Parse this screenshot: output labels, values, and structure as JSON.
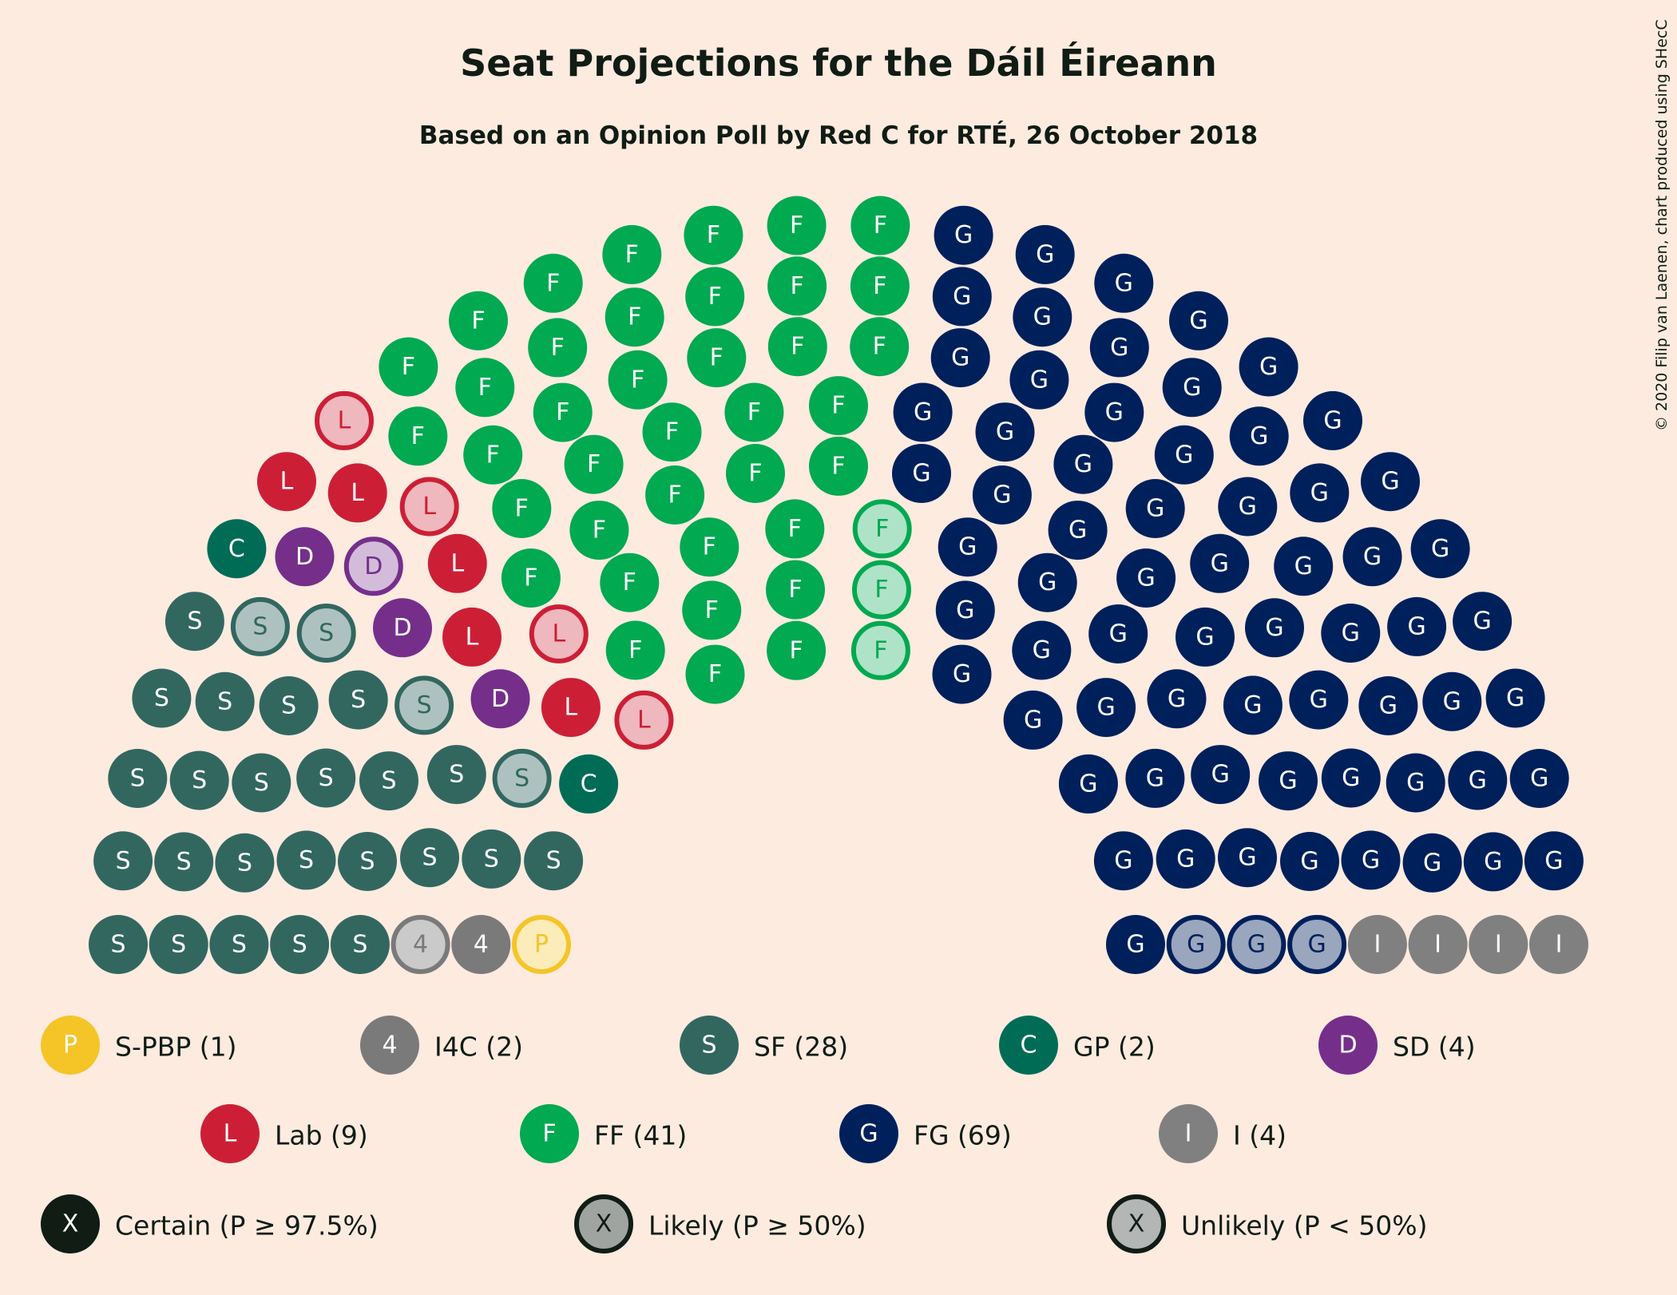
{
  "chart_data": {
    "type": "parliament",
    "title": "Seat Projections for the Dáil Éireann",
    "subtitle": "Based on an Opinion Poll by Red C for RTÉ, 26 October 2018",
    "credit": "© 2020 Filip van Laenen, chart produced using SHecC",
    "total_seats": 160,
    "parties": [
      {
        "abbr": "S-PBP",
        "letter": "P",
        "seats": 1,
        "legend": "S-PBP (1)",
        "color": "#f5c527",
        "certain": 0,
        "likely": 0,
        "unlikely": 1
      },
      {
        "abbr": "I4C",
        "letter": "4",
        "seats": 2,
        "legend": "I4C (2)",
        "color": "#7a7a7a",
        "certain": 1,
        "likely": 1,
        "unlikely": 0
      },
      {
        "abbr": "SF",
        "letter": "S",
        "seats": 28,
        "legend": "SF (28)",
        "color": "#326760",
        "certain": 24,
        "likely": 4,
        "unlikely": 0
      },
      {
        "abbr": "GP",
        "letter": "C",
        "seats": 2,
        "legend": "GP (2)",
        "color": "#006c56",
        "certain": 2,
        "likely": 0,
        "unlikely": 0
      },
      {
        "abbr": "SD",
        "letter": "D",
        "seats": 4,
        "legend": "SD (4)",
        "color": "#752f8b",
        "certain": 3,
        "likely": 0,
        "unlikely": 1
      },
      {
        "abbr": "Lab",
        "letter": "L",
        "seats": 9,
        "legend": "Lab (9)",
        "color": "#cc1f35",
        "certain": 5,
        "likely": 0,
        "unlikely": 4
      },
      {
        "abbr": "FF",
        "letter": "F",
        "seats": 41,
        "legend": "FF (41)",
        "color": "#01a951",
        "certain": 38,
        "likely": 0,
        "unlikely": 3
      },
      {
        "abbr": "FG",
        "letter": "G",
        "seats": 69,
        "legend": "FG (69)",
        "color": "#00205b",
        "certain": 66,
        "likely": 3,
        "unlikely": 0
      },
      {
        "abbr": "I",
        "letter": "I",
        "seats": 4,
        "legend": "I (4)",
        "color": "#808080",
        "certain": 4,
        "likely": 0,
        "unlikely": 0
      }
    ],
    "certainty_legend": [
      {
        "key": "certain",
        "letter": "X",
        "label": "Certain (P ≥ 97.5%)"
      },
      {
        "key": "likely",
        "letter": "X",
        "label": "Likely (P ≥ 50%)"
      },
      {
        "key": "unlikely",
        "letter": "X",
        "label": "Unlikely (P < 50%)"
      }
    ]
  }
}
